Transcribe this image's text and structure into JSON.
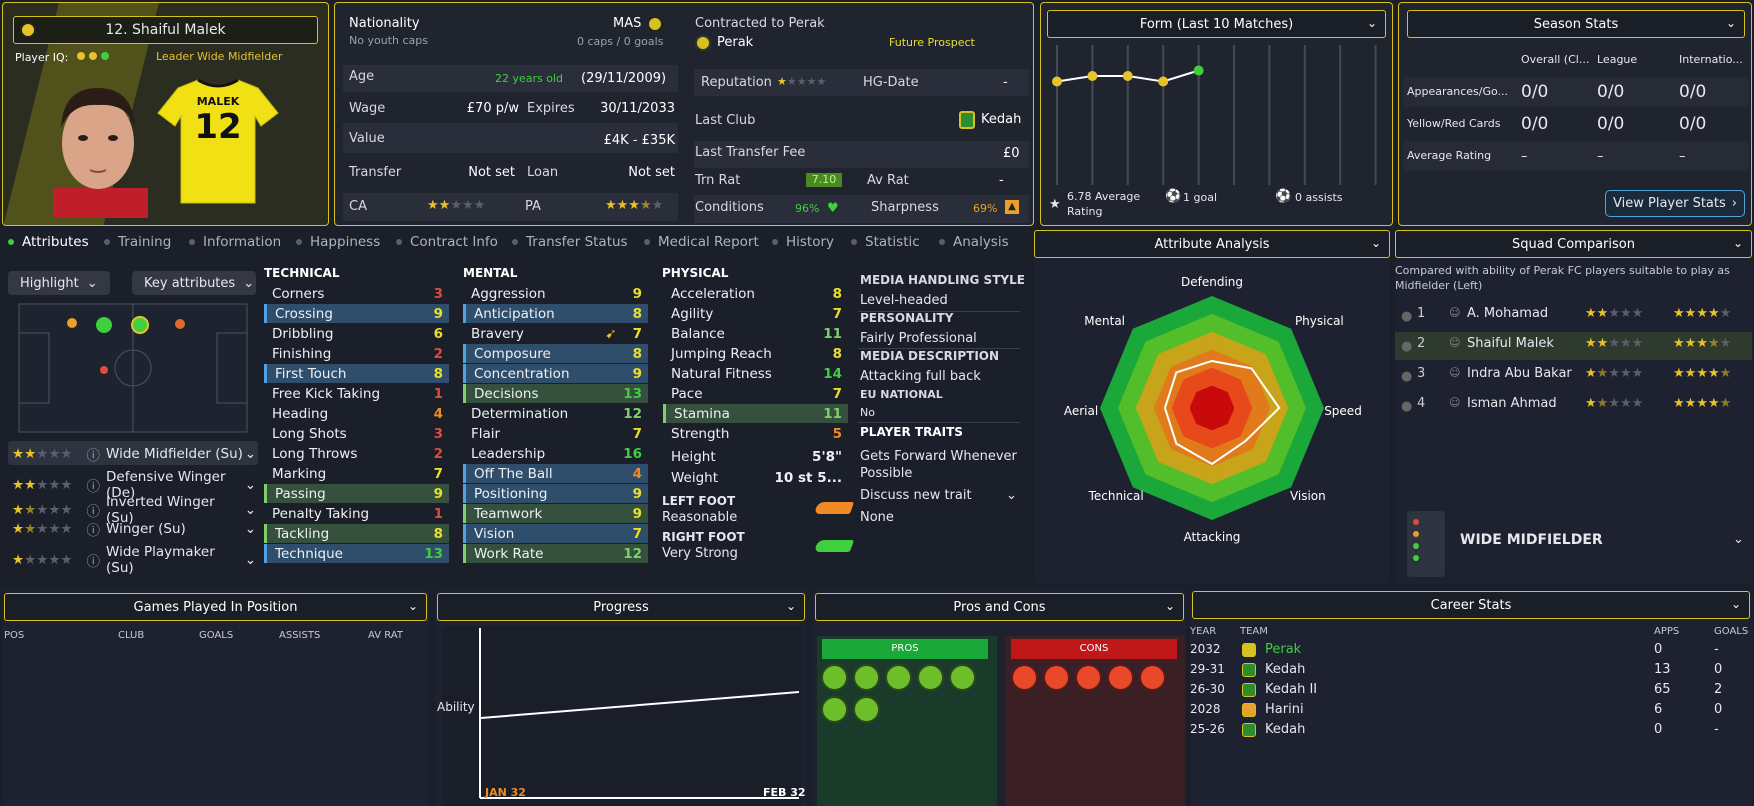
{
  "player": {
    "name": "12. Shaiful Malek",
    "player_iq_label": "Player IQ:",
    "role_badge": "Leader",
    "position": "Wide Midfielder",
    "shirt_name": "MALEK",
    "shirt_number": "12"
  },
  "info": {
    "nationality_label": "Nationality",
    "nationality": "MAS",
    "youth_caps": "No youth caps",
    "caps": "0 caps / 0 goals",
    "age_label": "Age",
    "age": "22 years old",
    "dob": "(29/11/2009)",
    "wage_label": "Wage",
    "wage": "£70 p/w",
    "expires_label": "Expires",
    "expires": "30/11/2033",
    "value_label": "Value",
    "value": "£4K - £35K",
    "transfer_label": "Transfer",
    "transfer": "Not set",
    "loan_label": "Loan",
    "loan": "Not set",
    "ca_label": "CA",
    "pa_label": "PA",
    "ca_stars": 2,
    "pa_stars": 3.5
  },
  "contract": {
    "contracted_label": "Contracted to Perak",
    "club": "Perak",
    "status": "Future Prospect",
    "reputation_label": "Reputation",
    "hg_label": "HG-Date",
    "hg": "-",
    "last_club_label": "Last Club",
    "last_club": "Kedah",
    "last_fee_label": "Last Transfer Fee",
    "last_fee": "£0",
    "trn_label": "Trn Rat",
    "trn": "7.10",
    "av_label": "Av Rat",
    "av": "-",
    "conditions_label": "Conditions",
    "conditions": "96%",
    "sharpness_label": "Sharpness",
    "sharpness": "69%"
  },
  "form": {
    "title": "Form (Last 10 Matches)",
    "avg": "6.78 Average Rating",
    "goals": "1 goal",
    "assists": "0 assists",
    "ratings": [
      6.7,
      6.8,
      6.8,
      6.7,
      6.9
    ]
  },
  "season": {
    "title": "Season Stats",
    "cols": [
      "Overall (Cl...",
      "League",
      "Internatio..."
    ],
    "rows": [
      {
        "label": "Appearances/Go...",
        "vals": [
          "0/0",
          "0/0",
          "0/0"
        ]
      },
      {
        "label": "Yellow/Red Cards",
        "vals": [
          "0/0",
          "0/0",
          "0/0"
        ]
      },
      {
        "label": "Average Rating",
        "vals": [
          "–",
          "–",
          "–"
        ]
      }
    ],
    "button": "View Player Stats"
  },
  "tabs": [
    "Attributes",
    "Training",
    "Information",
    "Happiness",
    "Contract Info",
    "Transfer Status",
    "Medical Report",
    "History",
    "Statistic",
    "Analysis"
  ],
  "left": {
    "highlight": "Highlight",
    "key": "Key attributes",
    "roles": [
      {
        "label": "Wide Midfielder (Su)",
        "stars": 2
      },
      {
        "label": "Defensive Winger (De)",
        "stars": 2
      },
      {
        "label": "Inverted Winger (Su)",
        "stars": 1.5
      },
      {
        "label": "Winger (Su)",
        "stars": 1.5
      },
      {
        "label": "Wide Playmaker (Su)",
        "stars": 1
      }
    ]
  },
  "technical": {
    "title": "TECHNICAL",
    "items": [
      [
        "Corners",
        "3"
      ],
      [
        "Crossing",
        "9"
      ],
      [
        "Dribbling",
        "6"
      ],
      [
        "Finishing",
        "2"
      ],
      [
        "First Touch",
        "8"
      ],
      [
        "Free Kick Taking",
        "1"
      ],
      [
        "Heading",
        "4"
      ],
      [
        "Long Shots",
        "3"
      ],
      [
        "Long Throws",
        "2"
      ],
      [
        "Marking",
        "7"
      ],
      [
        "Passing",
        "9"
      ],
      [
        "Penalty Taking",
        "1"
      ],
      [
        "Tackling",
        "8"
      ],
      [
        "Technique",
        "13"
      ]
    ]
  },
  "mental": {
    "title": "MENTAL",
    "items": [
      [
        "Aggression",
        "9"
      ],
      [
        "Anticipation",
        "8"
      ],
      [
        "Bravery",
        "7"
      ],
      [
        "Composure",
        "8"
      ],
      [
        "Concentration",
        "9"
      ],
      [
        "Decisions",
        "13"
      ],
      [
        "Determination",
        "12"
      ],
      [
        "Flair",
        "7"
      ],
      [
        "Leadership",
        "16"
      ],
      [
        "Off The Ball",
        "4"
      ],
      [
        "Positioning",
        "9"
      ],
      [
        "Teamwork",
        "9"
      ],
      [
        "Vision",
        "7"
      ],
      [
        "Work Rate",
        "12"
      ]
    ]
  },
  "physical": {
    "title": "PHYSICAL",
    "items": [
      [
        "Acceleration",
        "8"
      ],
      [
        "Agility",
        "7"
      ],
      [
        "Balance",
        "11"
      ],
      [
        "Jumping Reach",
        "8"
      ],
      [
        "Natural Fitness",
        "14"
      ],
      [
        "Pace",
        "7"
      ],
      [
        "Stamina",
        "11"
      ],
      [
        "Strength",
        "5"
      ]
    ],
    "height_label": "Height",
    "height": "5'8\"",
    "weight_label": "Weight",
    "weight": "10 st 5...",
    "left_foot_label": "LEFT FOOT",
    "left_foot": "Reasonable",
    "right_foot_label": "RIGHT FOOT",
    "right_foot": "Very Strong"
  },
  "media": {
    "style_title": "MEDIA HANDLING STYLE",
    "style": "Level-headed",
    "personality_title": "PERSONALITY",
    "personality": "Fairly Professional",
    "desc_title": "MEDIA DESCRIPTION",
    "desc": "Attacking full back",
    "eu_title": "EU NATIONAL",
    "eu": "No",
    "traits_title": "PLAYER TRAITS",
    "trait1": "Gets Forward Whenever Possible",
    "discuss": "Discuss new trait",
    "none": "None"
  },
  "analysis": {
    "title": "Attribute Analysis",
    "axes": [
      "Defending",
      "Physical",
      "Speed",
      "Vision",
      "Attacking",
      "Technical",
      "Aerial",
      "Mental"
    ],
    "values": [
      0.42,
      0.5,
      0.6,
      0.42,
      0.5,
      0.45,
      0.42,
      0.45
    ]
  },
  "squad": {
    "title": "Squad Comparison",
    "desc": "Compared with ability of Perak FC players suitable to play as Midfielder (Left)",
    "players": [
      {
        "rank": "1",
        "name": "A. Mohamad",
        "ca": 2,
        "pa": 4
      },
      {
        "rank": "2",
        "name": "Shaiful Malek",
        "ca": 2,
        "pa": 3.5
      },
      {
        "rank": "3",
        "name": "Indra Abu Bakar",
        "ca": 1.5,
        "pa": 4.5
      },
      {
        "rank": "4",
        "name": "Isman Ahmad",
        "ca": 1.5,
        "pa": 4.5
      }
    ],
    "role": "WIDE MIDFIELDER"
  },
  "games": {
    "title": "Games Played In Position",
    "cols": [
      "POS",
      "CLUB",
      "GOALS",
      "ASSISTS",
      "AV RAT"
    ]
  },
  "progress": {
    "title": "Progress",
    "ylabel": "Ability",
    "x_start": "JAN 32",
    "x_end": "FEB 32"
  },
  "pros": {
    "title": "Pros and Cons",
    "pros_label": "PROS",
    "cons_label": "CONS"
  },
  "career": {
    "title": "Career Stats",
    "cols": [
      "YEAR",
      "TEAM",
      "APPS",
      "GOALS"
    ],
    "rows": [
      [
        "2032",
        "Perak",
        "0",
        "-"
      ],
      [
        "29-31",
        "Kedah",
        "13",
        "0"
      ],
      [
        "26-30",
        "Kedah II",
        "65",
        "2"
      ],
      [
        "2028",
        "Harini",
        "6",
        "0"
      ],
      [
        "25-26",
        "Kedah",
        "0",
        "-"
      ]
    ]
  },
  "colors": {
    "accent": "#d6c21e",
    "green": "#3fcf3f",
    "yellow": "#e8c22a",
    "orange": "#f08a24",
    "red": "#e24a3b",
    "blue": "#4fa3e0"
  }
}
